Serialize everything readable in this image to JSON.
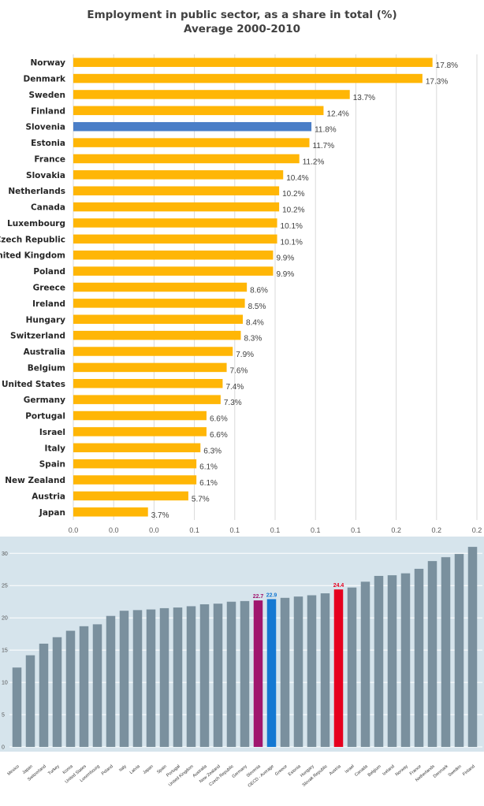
{
  "chart_data": [
    {
      "type": "bar",
      "orientation": "horizontal",
      "title": "Employment in public sector, as a share in total (%)",
      "subtitle": "Average 2000-2010",
      "categories": [
        "Norway",
        "Denmark",
        "Sweden",
        "Finland",
        "Slovenia",
        "Estonia",
        "France",
        "Slovakia",
        "Netherlands",
        "Canada",
        "Luxembourg",
        "Czech Republic",
        "United Kingdom",
        "Poland",
        "Greece",
        "Ireland",
        "Hungary",
        "Switzerland",
        "Australia",
        "Belgium",
        "United States",
        "Germany",
        "Portugal",
        "Israel",
        "Italy",
        "Spain",
        "New Zealand",
        "Austria",
        "Japan"
      ],
      "values": [
        17.8,
        17.3,
        13.7,
        12.4,
        11.8,
        11.7,
        11.2,
        10.4,
        10.2,
        10.2,
        10.1,
        10.1,
        9.9,
        9.9,
        8.6,
        8.5,
        8.4,
        8.3,
        7.9,
        7.6,
        7.4,
        7.3,
        6.6,
        6.6,
        6.3,
        6.1,
        6.1,
        5.7,
        3.7
      ],
      "data_labels": [
        "17.8%",
        "17.3%",
        "13.7%",
        "12.4%",
        "11.8%",
        "11.7%",
        "11.2%",
        "10.4%",
        "10.2%",
        "10.2%",
        "10.1%",
        "10.1%",
        "9.9%",
        "9.9%",
        "8.6%",
        "8.5%",
        "8.4%",
        "8.3%",
        "7.9%",
        "7.6%",
        "7.4%",
        "7.3%",
        "6.6%",
        "6.6%",
        "6.3%",
        "6.1%",
        "6.1%",
        "5.7%",
        "3.7%"
      ],
      "highlight_category": "Slovenia",
      "x_tick_labels": [
        "0.0",
        "0.0",
        "0.0",
        "0.1",
        "0.1",
        "0.1",
        "0.1",
        "0.1",
        "0.2",
        "0.2",
        "0.2"
      ],
      "xlim": [
        0,
        20
      ],
      "grid": true,
      "colors": {
        "bar": "#FFB606",
        "highlight": "#4A7EC7",
        "grid": "#D9D9D9"
      }
    },
    {
      "type": "bar",
      "categories": [
        "Mexico",
        "Japan",
        "Switzerland",
        "Turkey",
        "Korea",
        "United States",
        "Luxembourg",
        "Poland",
        "Italy",
        "Latvia",
        "Japan",
        "Spain",
        "Portugal",
        "United Kingdom",
        "Australia",
        "New Zealand",
        "Czech Republic",
        "Germany",
        "Slovenia",
        "OECD - Average",
        "Greece",
        "Estonia",
        "Hungary",
        "Slovak Republic",
        "Austria",
        "Israel",
        "Canada",
        "Belgium",
        "Iceland",
        "Norway",
        "France",
        "Netherlands",
        "Denmark",
        "Sweden",
        "Finland"
      ],
      "values": [
        12.3,
        14.2,
        16.0,
        17.0,
        18.0,
        18.7,
        19.0,
        20.3,
        21.1,
        21.2,
        21.3,
        21.5,
        21.6,
        21.8,
        22.1,
        22.2,
        22.5,
        22.6,
        22.7,
        22.9,
        23.1,
        23.3,
        23.5,
        23.8,
        24.4,
        24.7,
        25.6,
        26.5,
        26.6,
        26.9,
        27.6,
        28.8,
        29.4,
        29.9,
        31.0
      ],
      "data_labels": {
        "Slovenia": "22.7",
        "OECD - Average": "22.9",
        "Austria": "24.4"
      },
      "ylim": [
        0,
        31.5
      ],
      "y_tick_labels": [
        "0",
        "5",
        "10",
        "15",
        "20",
        "25",
        "30"
      ],
      "grid": true,
      "colors": {
        "bar": "#7A909E",
        "Slovenia": "#A0166E",
        "OECD - Average": "#1478D2",
        "Austria": "#E6001E",
        "background": "#D6E4EC",
        "grid": "#FFFFFF"
      }
    }
  ]
}
